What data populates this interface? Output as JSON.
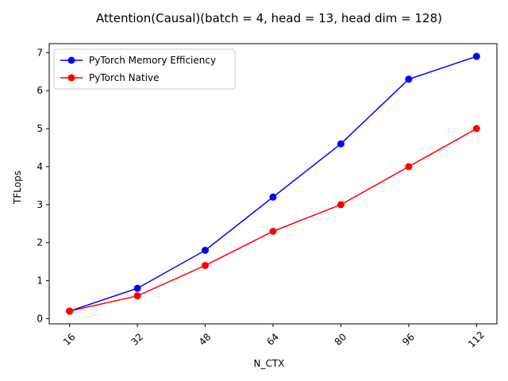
{
  "chart_data": {
    "type": "line",
    "title": "Attention(Causal)(batch = 4, head = 13, head dim = 128)",
    "xlabel": "N_CTX",
    "ylabel": "TFLops",
    "x": [
      16,
      32,
      48,
      64,
      80,
      96,
      112
    ],
    "x_tick_labels": [
      "16",
      "32",
      "48",
      "64",
      "80",
      "96",
      "112"
    ],
    "x_tick_rotation_deg": 45,
    "y_ticks": [
      0,
      1,
      2,
      3,
      4,
      5,
      6,
      7
    ],
    "y_tick_labels": [
      "0",
      "1",
      "2",
      "3",
      "4",
      "5",
      "6",
      "7"
    ],
    "xlim": [
      11.2,
      116.8
    ],
    "ylim": [
      -0.135,
      7.235
    ],
    "grid": false,
    "legend_position": "top-left",
    "series": [
      {
        "name": "PyTorch Memory Efficiency",
        "color": "#0000ff",
        "marker": "circle",
        "values": [
          0.2,
          0.8,
          1.8,
          3.2,
          4.6,
          6.3,
          6.9
        ]
      },
      {
        "name": "PyTorch Native",
        "color": "#ff0000",
        "marker": "circle",
        "values": [
          0.2,
          0.6,
          1.4,
          2.3,
          3.0,
          4.0,
          5.0
        ]
      }
    ]
  }
}
